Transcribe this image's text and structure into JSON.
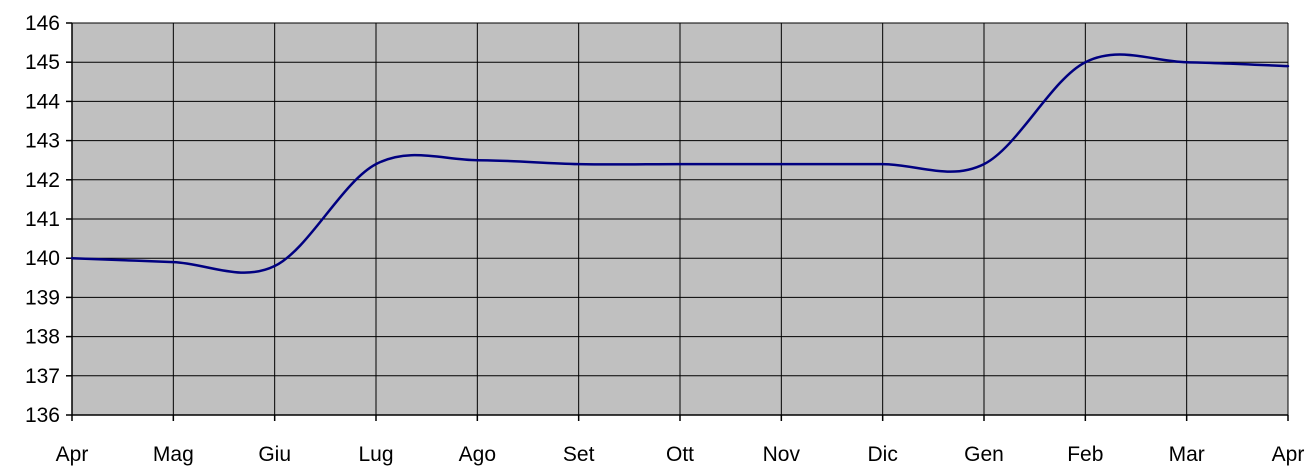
{
  "chart_data": {
    "type": "line",
    "title": "",
    "xlabel": "",
    "ylabel": "",
    "categories": [
      "Apr",
      "Mag",
      "Giu",
      "Lug",
      "Ago",
      "Set",
      "Ott",
      "Nov",
      "Dic",
      "Gen",
      "Feb",
      "Mar",
      "Apr"
    ],
    "y_ticks": [
      "136",
      "137",
      "138",
      "139",
      "140",
      "141",
      "142",
      "143",
      "144",
      "145",
      "146"
    ],
    "ylim": [
      136,
      146
    ],
    "grid": true,
    "legend": "none",
    "series": [
      {
        "values": [
          140.0,
          139.9,
          139.8,
          142.4,
          142.5,
          142.4,
          142.4,
          142.4,
          142.4,
          142.4,
          145.0,
          145.0,
          144.9
        ],
        "color": "#000080"
      }
    ],
    "colors": {
      "plot_background": "#c0c0c0",
      "grid": "#000000",
      "line": "#000080"
    }
  }
}
